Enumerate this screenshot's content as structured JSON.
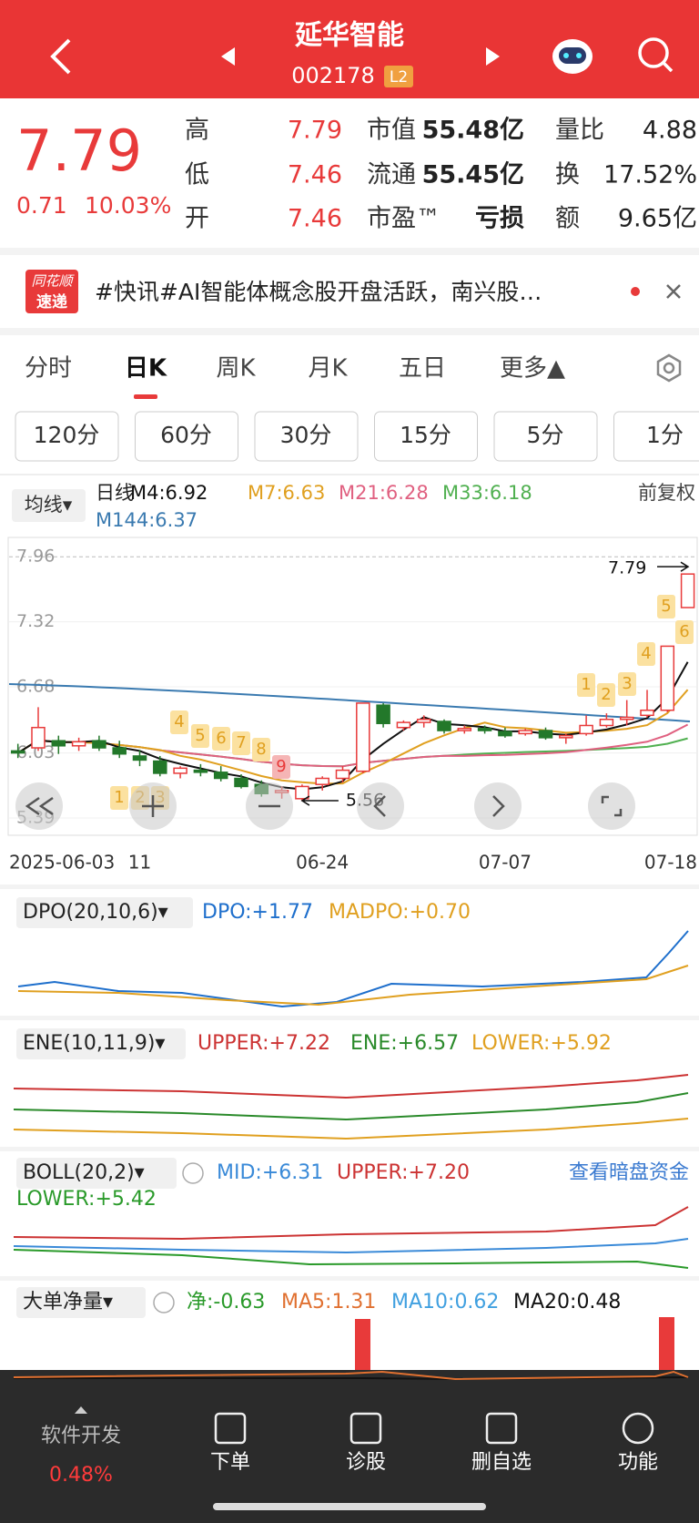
{
  "header": {
    "title": "延华智能",
    "code": "002178",
    "badge": "L2"
  },
  "quote": {
    "price": 7.79,
    "change": 0.71,
    "pct": "10.03%",
    "stats": [
      [
        {
          "label": "高",
          "value": 7.79
        },
        {
          "label": "市值",
          "value": "55.48亿"
        },
        {
          "label": "量比",
          "value": 4.88
        }
      ],
      [
        {
          "label": "低",
          "value": 7.46
        },
        {
          "label": "流通",
          "value": "55.45亿"
        },
        {
          "label": "换",
          "value": "17.52%"
        }
      ],
      [
        {
          "label": "开",
          "value": 7.46
        },
        {
          "label": "市盈™",
          "value": "亏损"
        },
        {
          "label": "额",
          "value": "9.65亿"
        }
      ]
    ]
  },
  "news": {
    "logo": [
      "同花顺",
      "速递"
    ],
    "text": "#快讯#AI智能体概念股开盘活跃，南兴股…"
  },
  "tabs": [
    "分时",
    "日K",
    "周K",
    "月K",
    "五日",
    "更多▲"
  ],
  "active_tab": 1,
  "intervals": [
    "120分",
    "60分",
    "30分",
    "15分",
    "5分",
    "1分"
  ],
  "ma_legend": {
    "button": "均线▾",
    "period": "日线",
    "adjust": "前复权",
    "items": [
      {
        "label": "M4:6.92",
        "color": "#111111"
      },
      {
        "label": "M7:6.63",
        "color": "#e0a020"
      },
      {
        "label": "M21:6.28",
        "color": "#e06080"
      },
      {
        "label": "M33:6.18",
        "color": "#50b050"
      },
      {
        "label": "M144:6.37",
        "color": "#3a7ab0"
      }
    ]
  },
  "chart_data": {
    "type": "candlestick",
    "categories": [
      "2025-06-03",
      null,
      null,
      null,
      null,
      null,
      "11",
      null,
      null,
      null,
      null,
      null,
      null,
      null,
      null,
      "06-24",
      null,
      null,
      null,
      null,
      null,
      null,
      null,
      null,
      "07-07",
      null,
      null,
      null,
      null,
      null,
      null,
      null,
      null,
      "07-18"
    ],
    "open": [
      6.05,
      6.08,
      6.15,
      6.1,
      6.15,
      6.08,
      6.0,
      5.95,
      5.83,
      5.86,
      5.84,
      5.78,
      5.72,
      5.64,
      5.58,
      5.72,
      5.78,
      5.85,
      6.5,
      6.28,
      6.33,
      6.34,
      6.25,
      6.27,
      6.24,
      6.22,
      6.25,
      6.18,
      6.22,
      6.3,
      6.36,
      6.4,
      6.45,
      7.46
    ],
    "high": [
      6.12,
      6.48,
      6.2,
      6.18,
      6.2,
      6.15,
      6.06,
      6.0,
      5.9,
      5.92,
      5.9,
      5.82,
      5.76,
      5.7,
      5.72,
      5.8,
      5.9,
      6.52,
      6.52,
      6.35,
      6.4,
      6.36,
      6.3,
      6.3,
      6.28,
      6.27,
      6.28,
      6.22,
      6.4,
      6.42,
      6.55,
      6.65,
      7.08,
      7.79
    ],
    "low": [
      5.98,
      6.05,
      6.02,
      6.05,
      6.05,
      5.98,
      5.9,
      5.8,
      5.78,
      5.8,
      5.75,
      5.68,
      5.6,
      5.58,
      5.56,
      5.66,
      5.74,
      5.83,
      6.28,
      6.25,
      6.28,
      6.22,
      6.22,
      6.22,
      6.18,
      6.2,
      6.16,
      6.12,
      6.2,
      6.28,
      6.3,
      6.38,
      6.43,
      7.46
    ],
    "close": [
      6.03,
      6.28,
      6.1,
      6.14,
      6.08,
      6.02,
      5.96,
      5.83,
      5.88,
      5.84,
      5.78,
      5.7,
      5.63,
      5.66,
      5.7,
      5.78,
      5.86,
      6.52,
      6.32,
      6.33,
      6.36,
      6.25,
      6.27,
      6.25,
      6.2,
      6.25,
      6.18,
      6.2,
      6.3,
      6.36,
      6.38,
      6.45,
      7.08,
      7.79
    ],
    "up_color": "#e83a3a",
    "down_color": "#23782a",
    "ylim": [
      5.22,
      8.15
    ],
    "yticks": [
      7.96,
      7.32,
      6.68,
      6.03,
      5.39
    ],
    "high_label": 7.79,
    "low_label": 5.56,
    "td_labels": [
      "1",
      "2",
      "3",
      "4",
      "5",
      "6",
      "7",
      "8",
      "9",
      "1",
      "2",
      "3",
      "4",
      "5",
      "6"
    ]
  },
  "indicators": [
    {
      "name": "DPO(20,10,6)▾",
      "items": [
        {
          "label": "DPO:+1.77",
          "color": "#1e6fcc"
        },
        {
          "label": "MADPO:+0.70",
          "color": "#e0a020"
        }
      ]
    },
    {
      "name": "ENE(10,11,9)▾",
      "items": [
        {
          "label": "UPPER:+7.22",
          "color": "#cc3333"
        },
        {
          "label": "ENE:+6.57",
          "color": "#2a8a2a"
        },
        {
          "label": "LOWER:+5.92",
          "color": "#e0a020"
        }
      ]
    },
    {
      "name": "BOLL(20,2)▾",
      "items": [
        {
          "label": "MID:+6.31",
          "color": "#3a8ad8"
        },
        {
          "label": "UPPER:+7.20",
          "color": "#cc3333"
        },
        {
          "label": "LOWER:+5.42",
          "color": "#2a9a2a"
        }
      ],
      "link": "查看暗盘资金"
    },
    {
      "name": "大单净量▾",
      "items": [
        {
          "label": "净:-0.63",
          "color": "#2a9a2a"
        },
        {
          "label": "MA5:1.31",
          "color": "#e07030"
        },
        {
          "label": "MA10:0.62",
          "color": "#40a0e0"
        },
        {
          "label": "MA20:0.48",
          "color": "#111111"
        }
      ]
    }
  ],
  "bottom_nav": {
    "stock": {
      "name": "软件开发",
      "pct": "0.48%"
    },
    "items": [
      "下单",
      "诊股",
      "删自选",
      "功能"
    ]
  }
}
